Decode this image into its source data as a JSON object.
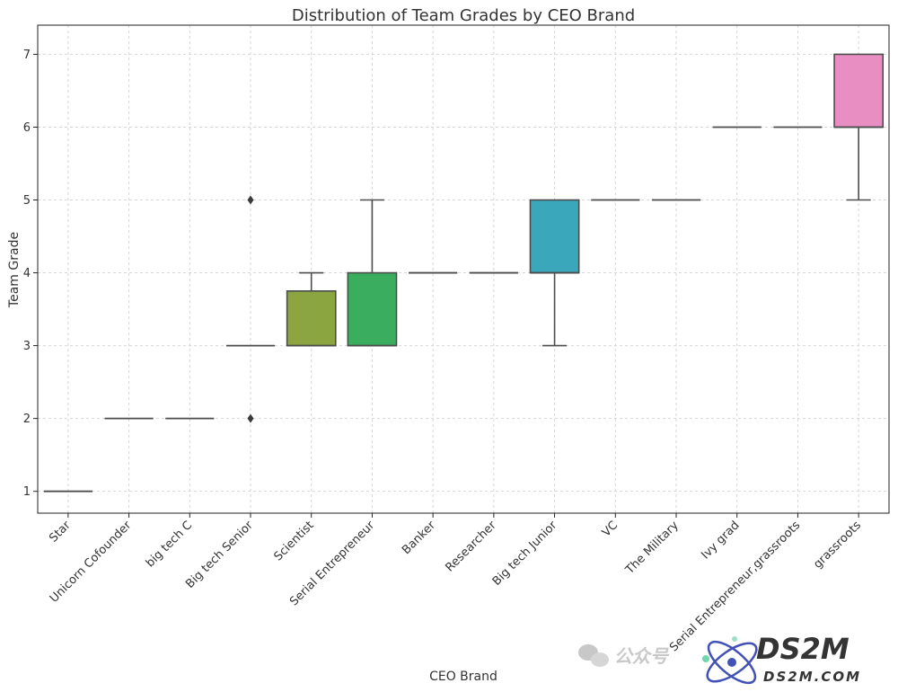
{
  "chart_data": {
    "type": "box",
    "title": "Distribution of Team Grades by CEO Brand",
    "xlabel": "CEO Brand",
    "ylabel": "Team Grade",
    "ylim": [
      0.7,
      7.4
    ],
    "yticks": [
      1,
      2,
      3,
      4,
      5,
      6,
      7
    ],
    "grid": true,
    "categories": [
      "Star",
      "Unicorn Cofounder",
      "big tech C",
      "Big tech Senior",
      "Scientist",
      "Serial Entrepreneur",
      "Banker",
      "Researcher",
      "Big tech Junior",
      "VC",
      "The Military",
      "Ivy grad",
      "Serial Entrepreneur,grassroots",
      "grassroots"
    ],
    "boxes": [
      {
        "category": "Star",
        "whisker_low": 1,
        "q1": 1,
        "median": 1,
        "q3": 1,
        "whisker_high": 1,
        "outliers": [],
        "color": "#e8747a"
      },
      {
        "category": "Unicorn Cofounder",
        "whisker_low": 2,
        "q1": 2,
        "median": 2,
        "q3": 2,
        "whisker_high": 2,
        "outliers": [],
        "color": "#e1834a"
      },
      {
        "category": "big tech C",
        "whisker_low": 2,
        "q1": 2,
        "median": 2,
        "q3": 2,
        "whisker_high": 2,
        "outliers": [],
        "color": "#c89430"
      },
      {
        "category": "Big tech Senior",
        "whisker_low": 3,
        "q1": 3,
        "median": 3,
        "q3": 3,
        "whisker_high": 3,
        "outliers": [
          2,
          5
        ],
        "color": "#b29b2f"
      },
      {
        "category": "Scientist",
        "whisker_low": 3,
        "q1": 3,
        "median": 3,
        "q3": 3.75,
        "whisker_high": 4,
        "outliers": [],
        "color": "#8ba540"
      },
      {
        "category": "Serial Entrepreneur",
        "whisker_low": 3,
        "q1": 3,
        "median": 3,
        "q3": 4,
        "whisker_high": 5,
        "outliers": [],
        "color": "#3aad5e"
      },
      {
        "category": "Banker",
        "whisker_low": 4,
        "q1": 4,
        "median": 4,
        "q3": 4,
        "whisker_high": 4,
        "outliers": [],
        "color": "#36ab8c"
      },
      {
        "category": "Researcher",
        "whisker_low": 4,
        "q1": 4,
        "median": 4,
        "q3": 4,
        "whisker_high": 4,
        "outliers": [],
        "color": "#38a9a4"
      },
      {
        "category": "Big tech Junior",
        "whisker_low": 3,
        "q1": 4,
        "median": 4,
        "q3": 5,
        "whisker_high": 5,
        "outliers": [],
        "color": "#3aa7bb"
      },
      {
        "category": "VC",
        "whisker_low": 5,
        "q1": 5,
        "median": 5,
        "q3": 5,
        "whisker_high": 5,
        "outliers": [],
        "color": "#4b9fd6"
      },
      {
        "category": "The Military",
        "whisker_low": 5,
        "q1": 5,
        "median": 5,
        "q3": 5,
        "whisker_high": 5,
        "outliers": [],
        "color": "#8a8fe0"
      },
      {
        "category": "Ivy grad",
        "whisker_low": 6,
        "q1": 6,
        "median": 6,
        "q3": 6,
        "whisker_high": 6,
        "outliers": [],
        "color": "#b880e0"
      },
      {
        "category": "Serial Entrepreneur,grassroots",
        "whisker_low": 6,
        "q1": 6,
        "median": 6,
        "q3": 6,
        "whisker_high": 6,
        "outliers": [],
        "color": "#d97ed0"
      },
      {
        "category": "grassroots",
        "whisker_low": 5,
        "q1": 6,
        "median": 6,
        "q3": 7,
        "whisker_high": 7,
        "outliers": [],
        "color": "#e88ec2"
      }
    ]
  },
  "watermark": {
    "wechat_text": "公众号",
    "brand_text": "DS2M",
    "brand_subtext": "DS2M.COM"
  }
}
